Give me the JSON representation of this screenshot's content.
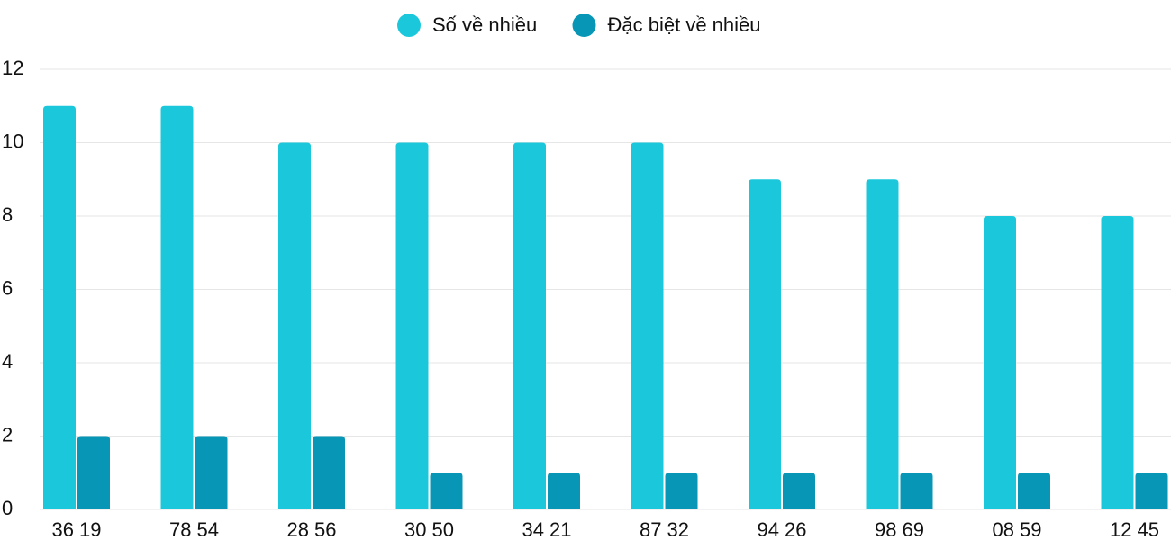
{
  "chart_data": {
    "type": "bar",
    "categories": [
      "36 19",
      "78 54",
      "28 56",
      "30 50",
      "34 21",
      "87 32",
      "94 26",
      "98 69",
      "08 59",
      "12 45"
    ],
    "series": [
      {
        "name": "Số về nhiều",
        "color": "#1bc8db",
        "values": [
          11,
          11,
          10,
          10,
          10,
          10,
          9,
          9,
          8,
          8
        ]
      },
      {
        "name": "Đặc biệt về nhiều",
        "color": "#0796b6",
        "values": [
          2,
          2,
          2,
          1,
          1,
          1,
          1,
          1,
          1,
          1
        ]
      }
    ],
    "ylim": [
      0,
      12
    ],
    "yticks": [
      0,
      2,
      4,
      6,
      8,
      10,
      12
    ],
    "grid": true,
    "legend": "top"
  }
}
